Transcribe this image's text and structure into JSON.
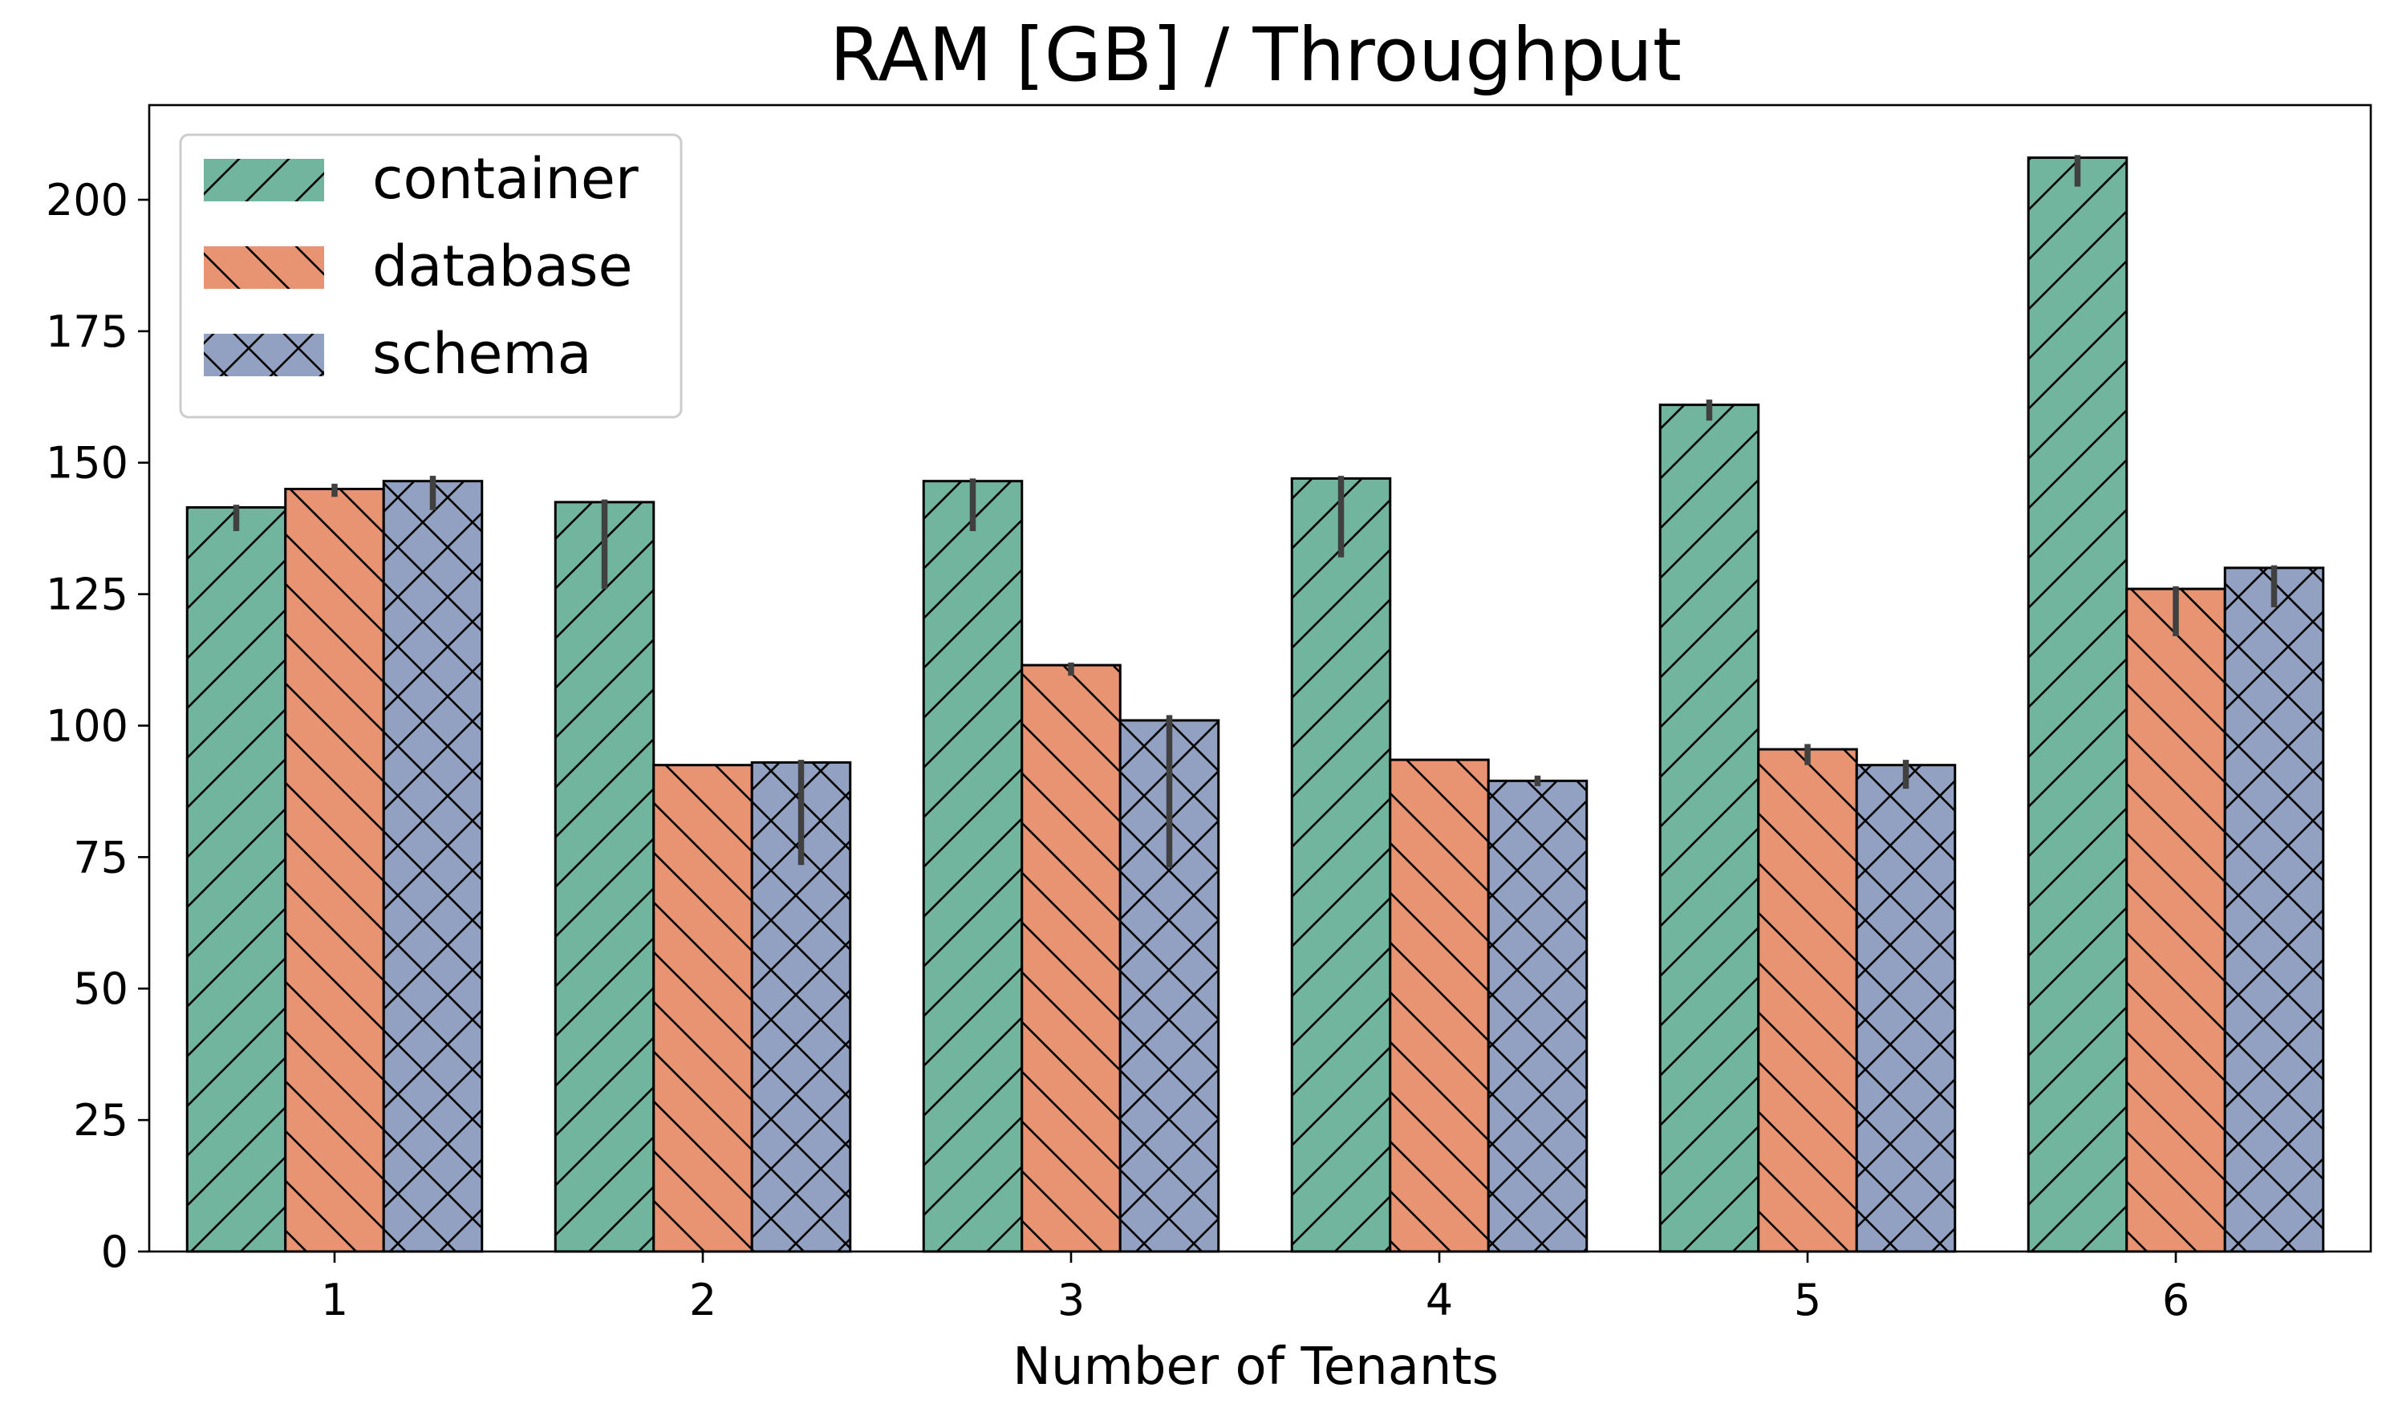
{
  "chart_data": {
    "type": "bar",
    "title": "RAM [GB] / Throughput",
    "xlabel": "Number of Tenants",
    "ylabel": "",
    "categories": [
      "1",
      "2",
      "3",
      "4",
      "5",
      "6"
    ],
    "ylim": [
      0,
      218
    ],
    "yticks": [
      0,
      25,
      50,
      75,
      100,
      125,
      150,
      175,
      200
    ],
    "grid": false,
    "legend_position": "top-left",
    "series": [
      {
        "name": "container",
        "color": "#72b59e",
        "hatch": "forward-diagonal",
        "values": [
          141.5,
          142.5,
          146.5,
          147.0,
          161.0,
          208.0
        ],
        "error_low": [
          137.0,
          126.0,
          137.0,
          132.0,
          158.0,
          202.5
        ],
        "error_high": [
          142.0,
          143.0,
          147.0,
          147.5,
          162.0,
          208.5
        ]
      },
      {
        "name": "database",
        "color": "#e89472",
        "hatch": "back-diagonal",
        "values": [
          145.0,
          92.5,
          111.5,
          93.5,
          95.5,
          126.0
        ],
        "error_low": [
          143.5,
          92.5,
          109.5,
          93.5,
          92.5,
          117.0
        ],
        "error_high": [
          146.0,
          92.5,
          112.0,
          93.5,
          96.5,
          126.5
        ]
      },
      {
        "name": "schema",
        "color": "#92a1c2",
        "hatch": "crosshatch",
        "values": [
          146.5,
          93.0,
          101.0,
          89.5,
          92.5,
          130.0
        ],
        "error_low": [
          141.0,
          73.5,
          73.0,
          88.5,
          88.0,
          122.5
        ],
        "error_high": [
          147.5,
          93.5,
          102.0,
          90.5,
          93.5,
          130.5
        ]
      }
    ]
  }
}
